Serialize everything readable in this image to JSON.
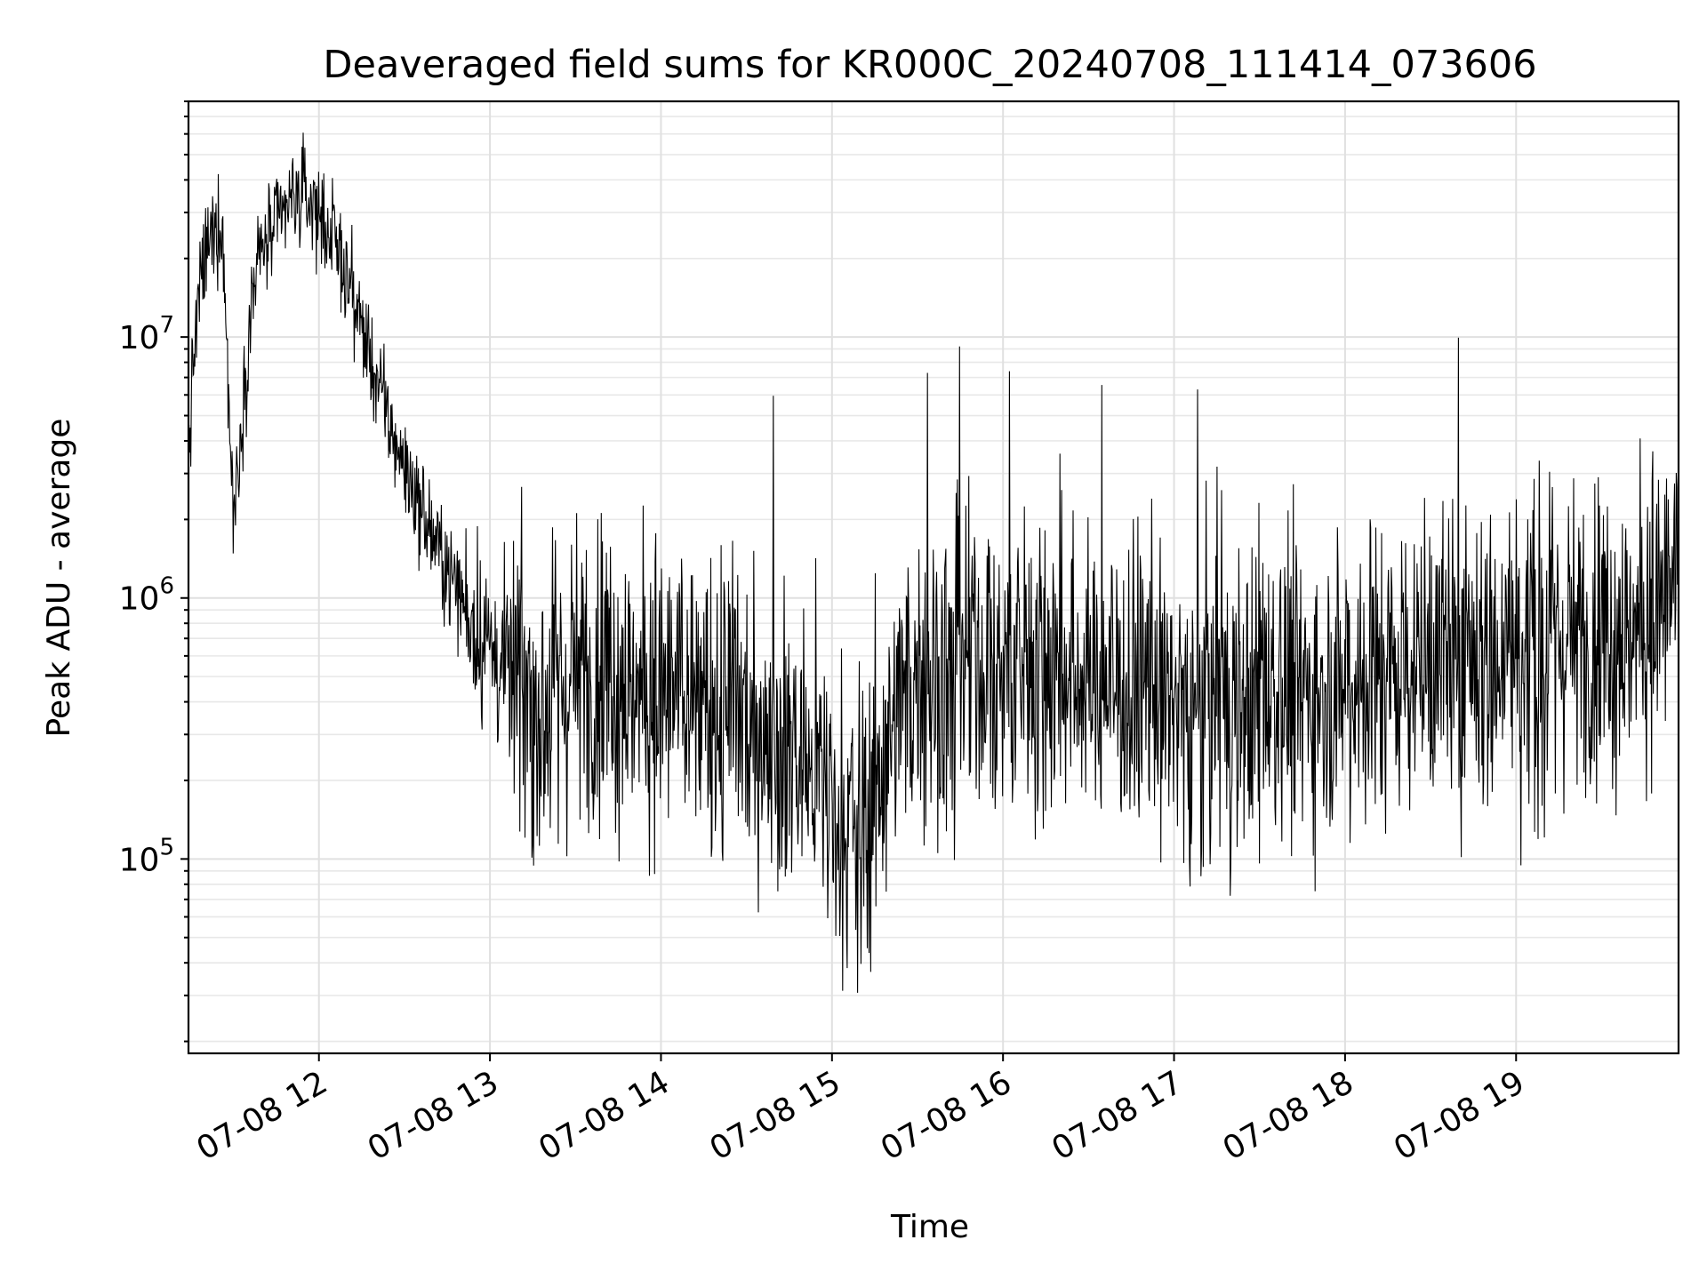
{
  "chart_data": {
    "type": "line",
    "title": "Deaveraged field sums for KR000C_20240708_111414_073606",
    "xlabel": "Time",
    "ylabel": "Peak ADU - average",
    "y_scale": "log",
    "grid": true,
    "xlim": [
      "2024-07-08T11:14:14",
      "2024-07-08T19:57:00"
    ],
    "ylim": [
      18000,
      80000000
    ],
    "x_ticks": [
      {
        "value": "2024-07-08T12:00:00",
        "label": "07-08 12"
      },
      {
        "value": "2024-07-08T13:00:00",
        "label": "07-08 13"
      },
      {
        "value": "2024-07-08T14:00:00",
        "label": "07-08 14"
      },
      {
        "value": "2024-07-08T15:00:00",
        "label": "07-08 15"
      },
      {
        "value": "2024-07-08T16:00:00",
        "label": "07-08 16"
      },
      {
        "value": "2024-07-08T17:00:00",
        "label": "07-08 17"
      },
      {
        "value": "2024-07-08T18:00:00",
        "label": "07-08 18"
      },
      {
        "value": "2024-07-08T19:00:00",
        "label": "07-08 19"
      }
    ],
    "y_ticks": [
      {
        "value": 100000,
        "base": "10",
        "exp": "5"
      },
      {
        "value": 1000000,
        "base": "10",
        "exp": "6"
      },
      {
        "value": 10000000,
        "base": "10",
        "exp": "7"
      }
    ],
    "line_color": "#000000",
    "series": [
      {
        "x": [
          "2024-07-08T11:14:14",
          "2024-07-08T11:16:00",
          "2024-07-08T11:18:00",
          "2024-07-08T11:20:00",
          "2024-07-08T11:23:00",
          "2024-07-08T11:26:00",
          "2024-07-08T11:30:00",
          "2024-07-08T11:33:00",
          "2024-07-08T11:35:00",
          "2024-07-08T11:37:00",
          "2024-07-08T11:40:00",
          "2024-07-08T11:45:00",
          "2024-07-08T11:50:00",
          "2024-07-08T11:55:00",
          "2024-07-08T12:00:00",
          "2024-07-08T12:05:00",
          "2024-07-08T12:10:00",
          "2024-07-08T12:15:00",
          "2024-07-08T12:20:00",
          "2024-07-08T12:25:00",
          "2024-07-08T12:30:00",
          "2024-07-08T12:35:00",
          "2024-07-08T12:40:00",
          "2024-07-08T12:45:00",
          "2024-07-08T12:50:00",
          "2024-07-08T12:55:00",
          "2024-07-08T13:00:00",
          "2024-07-08T13:10:00",
          "2024-07-08T13:20:00",
          "2024-07-08T13:30:00",
          "2024-07-08T13:40:00",
          "2024-07-08T13:50:00",
          "2024-07-08T14:00:00",
          "2024-07-08T14:15:00",
          "2024-07-08T14:30:00",
          "2024-07-08T14:45:00",
          "2024-07-08T15:00:00",
          "2024-07-08T15:10:00",
          "2024-07-08T15:20:00",
          "2024-07-08T15:30:00",
          "2024-07-08T15:45:00",
          "2024-07-08T16:00:00",
          "2024-07-08T16:20:00",
          "2024-07-08T16:40:00",
          "2024-07-08T17:00:00",
          "2024-07-08T17:20:00",
          "2024-07-08T17:40:00",
          "2024-07-08T18:00:00",
          "2024-07-08T18:20:00",
          "2024-07-08T18:40:00",
          "2024-07-08T19:00:00",
          "2024-07-08T19:20:00",
          "2024-07-08T19:40:00",
          "2024-07-08T19:57:00"
        ],
        "values": [
          3500000,
          8000000,
          15000000,
          20000000,
          25000000,
          28000000,
          2000000,
          5000000,
          9000000,
          16000000,
          22000000,
          26000000,
          33000000,
          35000000,
          30000000,
          24000000,
          17000000,
          11000000,
          7000000,
          4500000,
          3200000,
          2300000,
          1700000,
          1300000,
          1000000,
          800000,
          650000,
          450000,
          380000,
          500000,
          520000,
          460000,
          430000,
          380000,
          360000,
          280000,
          170000,
          120000,
          300000,
          520000,
          560000,
          540000,
          520000,
          480000,
          400000,
          400000,
          430000,
          500000,
          560000,
          580000,
          620000,
          680000,
          750000,
          1100000
        ]
      }
    ]
  }
}
